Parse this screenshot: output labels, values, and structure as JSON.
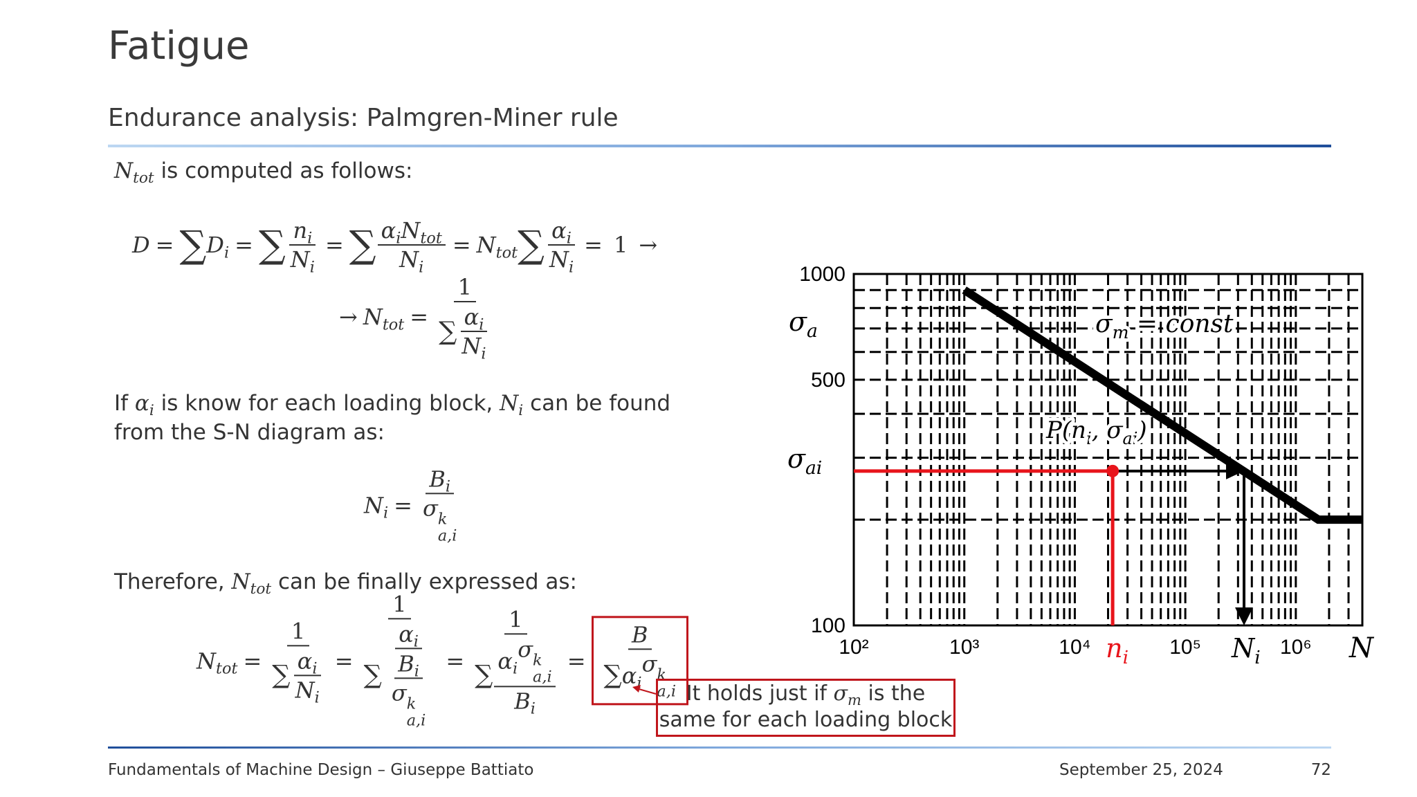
{
  "header": {
    "title": "Fatigue",
    "subtitle": "Endurance analysis: Palmgren-Miner rule"
  },
  "body": {
    "p1": [
      {
        "b": "N",
        "sub": "tot"
      },
      " is computed as follows:"
    ],
    "f1": [
      {
        "b": "D"
      },
      "=",
      {
        "big": "∑"
      },
      {
        "b": "D",
        "sub": "i"
      },
      "=",
      {
        "big": "∑"
      },
      {
        "num": [
          {
            "b": "n",
            "sub": "i"
          }
        ],
        "den": [
          {
            "b": "N",
            "sub": "i"
          }
        ]
      },
      "=",
      {
        "big": "∑"
      },
      {
        "num": [
          {
            "b": "α",
            "sub": "i"
          },
          {
            "b": "N",
            "sub": "tot"
          }
        ],
        "den": [
          {
            "b": "N",
            "sub": "i"
          }
        ]
      },
      "=",
      {
        "b": "N",
        "sub": "tot"
      },
      {
        "big": "∑"
      },
      {
        "num": [
          {
            "b": "α",
            "sub": "i"
          }
        ],
        "den": [
          {
            "b": "N",
            "sub": "i"
          }
        ]
      },
      "=",
      "1",
      "→"
    ],
    "f2": [
      "→",
      {
        "b": "N",
        "sub": "tot"
      },
      "=",
      {
        "num": [
          "1"
        ],
        "den": [
          {
            "big": "∑"
          },
          {
            "num": [
              {
                "b": "α",
                "sub": "i"
              }
            ],
            "den": [
              {
                "b": "N",
                "sub": "i"
              }
            ]
          }
        ]
      }
    ],
    "p2": [
      "If ",
      {
        "b": "α",
        "sub": "i"
      },
      " is know for each loading block, ",
      {
        "b": "N",
        "sub": "i"
      },
      " can be found from the S-N diagram as:"
    ],
    "f3": [
      {
        "b": "N",
        "sub": "i"
      },
      "=",
      {
        "num": [
          {
            "b": "B",
            "sub": "i"
          }
        ],
        "den": [
          {
            "b": "σ",
            "sub": "a,i",
            "sup": "k"
          }
        ]
      }
    ],
    "p3": [
      "Therefore, ",
      {
        "b": "N",
        "sub": "tot"
      },
      " can be finally expressed as:"
    ],
    "f4": [
      {
        "b": "N",
        "sub": "tot"
      },
      "=",
      {
        "num": [
          "1"
        ],
        "den": [
          {
            "big": "∑"
          },
          {
            "num": [
              {
                "b": "α",
                "sub": "i"
              }
            ],
            "den": [
              {
                "b": "N",
                "sub": "i"
              }
            ]
          }
        ]
      },
      "=",
      {
        "num": [
          "1"
        ],
        "den": [
          {
            "big": "∑"
          },
          {
            "num": [
              {
                "b": "α",
                "sub": "i"
              }
            ],
            "den": [
              {
                "num": [
                  {
                    "b": "B",
                    "sub": "i"
                  }
                ],
                "den": [
                  {
                    "b": "σ",
                    "sub": "a,i",
                    "sup": "k"
                  }
                ]
              }
            ]
          }
        ]
      },
      "=",
      {
        "num": [
          "1"
        ],
        "den": [
          {
            "big": "∑"
          },
          {
            "num": [
              {
                "b": "α",
                "sub": "i"
              },
              {
                "b": "σ",
                "sub": "a,i",
                "sup": "k"
              }
            ],
            "den": [
              {
                "b": "B",
                "sub": "i"
              }
            ]
          }
        ]
      },
      "=",
      {
        "box": [
          {
            "num": [
              {
                "b": "B"
              }
            ],
            "den": [
              {
                "big": "∑"
              },
              {
                "b": "α",
                "sub": "i"
              },
              {
                "b": "σ",
                "sub": "a,i",
                "sup": "k"
              }
            ]
          }
        ]
      }
    ],
    "callout": [
      "It holds just if ",
      {
        "b": "σ",
        "sub": "m"
      },
      " is the same for each loading block"
    ]
  },
  "chart_data": {
    "type": "line",
    "xscale": "log",
    "yscale": "log",
    "xlim": [
      100,
      4000000
    ],
    "ylim": [
      100,
      1000
    ],
    "xticks": [
      {
        "value": 100,
        "label": "10²"
      },
      {
        "value": 1000,
        "label": "10³"
      },
      {
        "value": 10000,
        "label": "10⁴"
      },
      {
        "value": 100000,
        "label": "10⁵"
      },
      {
        "value": 1000000,
        "label": "10⁶"
      }
    ],
    "yticks": [
      100,
      500,
      1000
    ],
    "xminor": [
      200,
      300,
      400,
      500,
      600,
      700,
      800,
      900,
      2000,
      3000,
      4000,
      5000,
      6000,
      7000,
      8000,
      9000,
      20000,
      30000,
      40000,
      50000,
      60000,
      70000,
      80000,
      90000,
      200000,
      300000,
      400000,
      500000,
      600000,
      700000,
      800000,
      900000,
      2000000,
      3000000
    ],
    "yminor": [
      200,
      300,
      400,
      600,
      700,
      800,
      900
    ],
    "grid": true,
    "x_label": [
      {
        "b": "N"
      }
    ],
    "y_label": [
      {
        "b": "σ",
        "sub": "a"
      }
    ],
    "series": [
      {
        "color": "#000000",
        "x": [
          1000,
          1600000,
          4000000
        ],
        "values": [
          900,
          200,
          200
        ]
      }
    ],
    "annotation": [
      {
        "b": "σ",
        "sub": "m"
      },
      " = ",
      {
        "b": "const"
      }
    ],
    "operating_point": {
      "color": "#e8141b",
      "n": 22000,
      "sigma": 275,
      "N": 340000,
      "label": [
        {
          "b": "P"
        },
        "(",
        {
          "b": "n",
          "sub": "i"
        },
        ", ",
        {
          "b": "σ",
          "sub": "ai"
        },
        ")"
      ],
      "n_label": [
        {
          "b": "n",
          "sub": "i"
        }
      ],
      "N_label": [
        {
          "b": "N",
          "sub": "i"
        }
      ],
      "sigma_label": [
        {
          "b": "σ",
          "sub": "ai"
        }
      ]
    }
  },
  "footer": {
    "left": "Fundamentals of Machine Design – Giuseppe Battiato",
    "date": "September 25, 2024",
    "page": "72"
  }
}
